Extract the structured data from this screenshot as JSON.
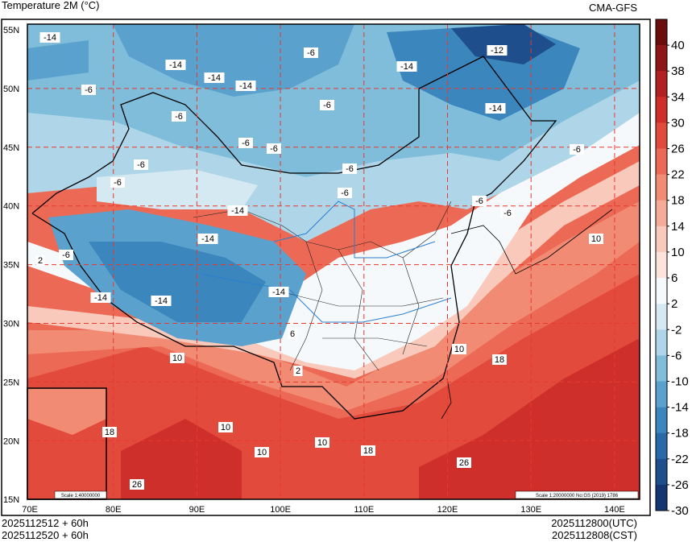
{
  "header": {
    "title": "Temperature  2M (°C)",
    "model": "CMA-GFS"
  },
  "footer": {
    "init_utc": "2025112512 + 60h",
    "init_cst": "2025112520 + 60h",
    "valid_utc": "2025112800(UTC)",
    "valid_cst": "2025112808(CST)"
  },
  "map": {
    "lat_labels": [
      "55N",
      "50N",
      "45N",
      "40N",
      "35N",
      "30N",
      "25N",
      "20N",
      "15N"
    ],
    "lon_labels": [
      "70E",
      "80E",
      "90E",
      "100E",
      "110E",
      "120E",
      "130E",
      "140E"
    ],
    "inset_scale": "Scale 1:40000000",
    "main_scale": "Scale 1:20000000 No:GS (2019) 1786",
    "contour_labels": [
      "-14",
      "-14",
      "-14",
      "-14",
      "-6",
      "-14",
      "-12",
      "-6",
      "-6",
      "-6",
      "-14",
      "-6",
      "-6",
      "-6",
      "-6",
      "-6",
      "-6",
      "-6",
      "-14",
      "-14",
      "-6",
      "2",
      "-6",
      "-14",
      "-14",
      "-14",
      "-6",
      "2",
      "10",
      "6",
      "2",
      "10",
      "10",
      "10",
      "18",
      "18",
      "10",
      "10",
      "18",
      "26",
      "26"
    ]
  },
  "colorbar": {
    "labels": [
      "40",
      "38",
      "34",
      "30",
      "26",
      "22",
      "18",
      "14",
      "10",
      "6",
      "2",
      "-2",
      "-6",
      "-10",
      "-14",
      "-18",
      "-22",
      "-26",
      "-30"
    ],
    "colors": [
      "#6b0d0d",
      "#8e1616",
      "#b22121",
      "#cf2f2a",
      "#e24a3b",
      "#ec6a55",
      "#f28b74",
      "#f6ab98",
      "#f9c9bc",
      "#fce4dc",
      "#f6f9fc",
      "#d5e9f2",
      "#aed6e8",
      "#7fbddb",
      "#5aa2cd",
      "#3a86bd",
      "#2a69a8",
      "#1f4e8c",
      "#143670"
    ]
  }
}
